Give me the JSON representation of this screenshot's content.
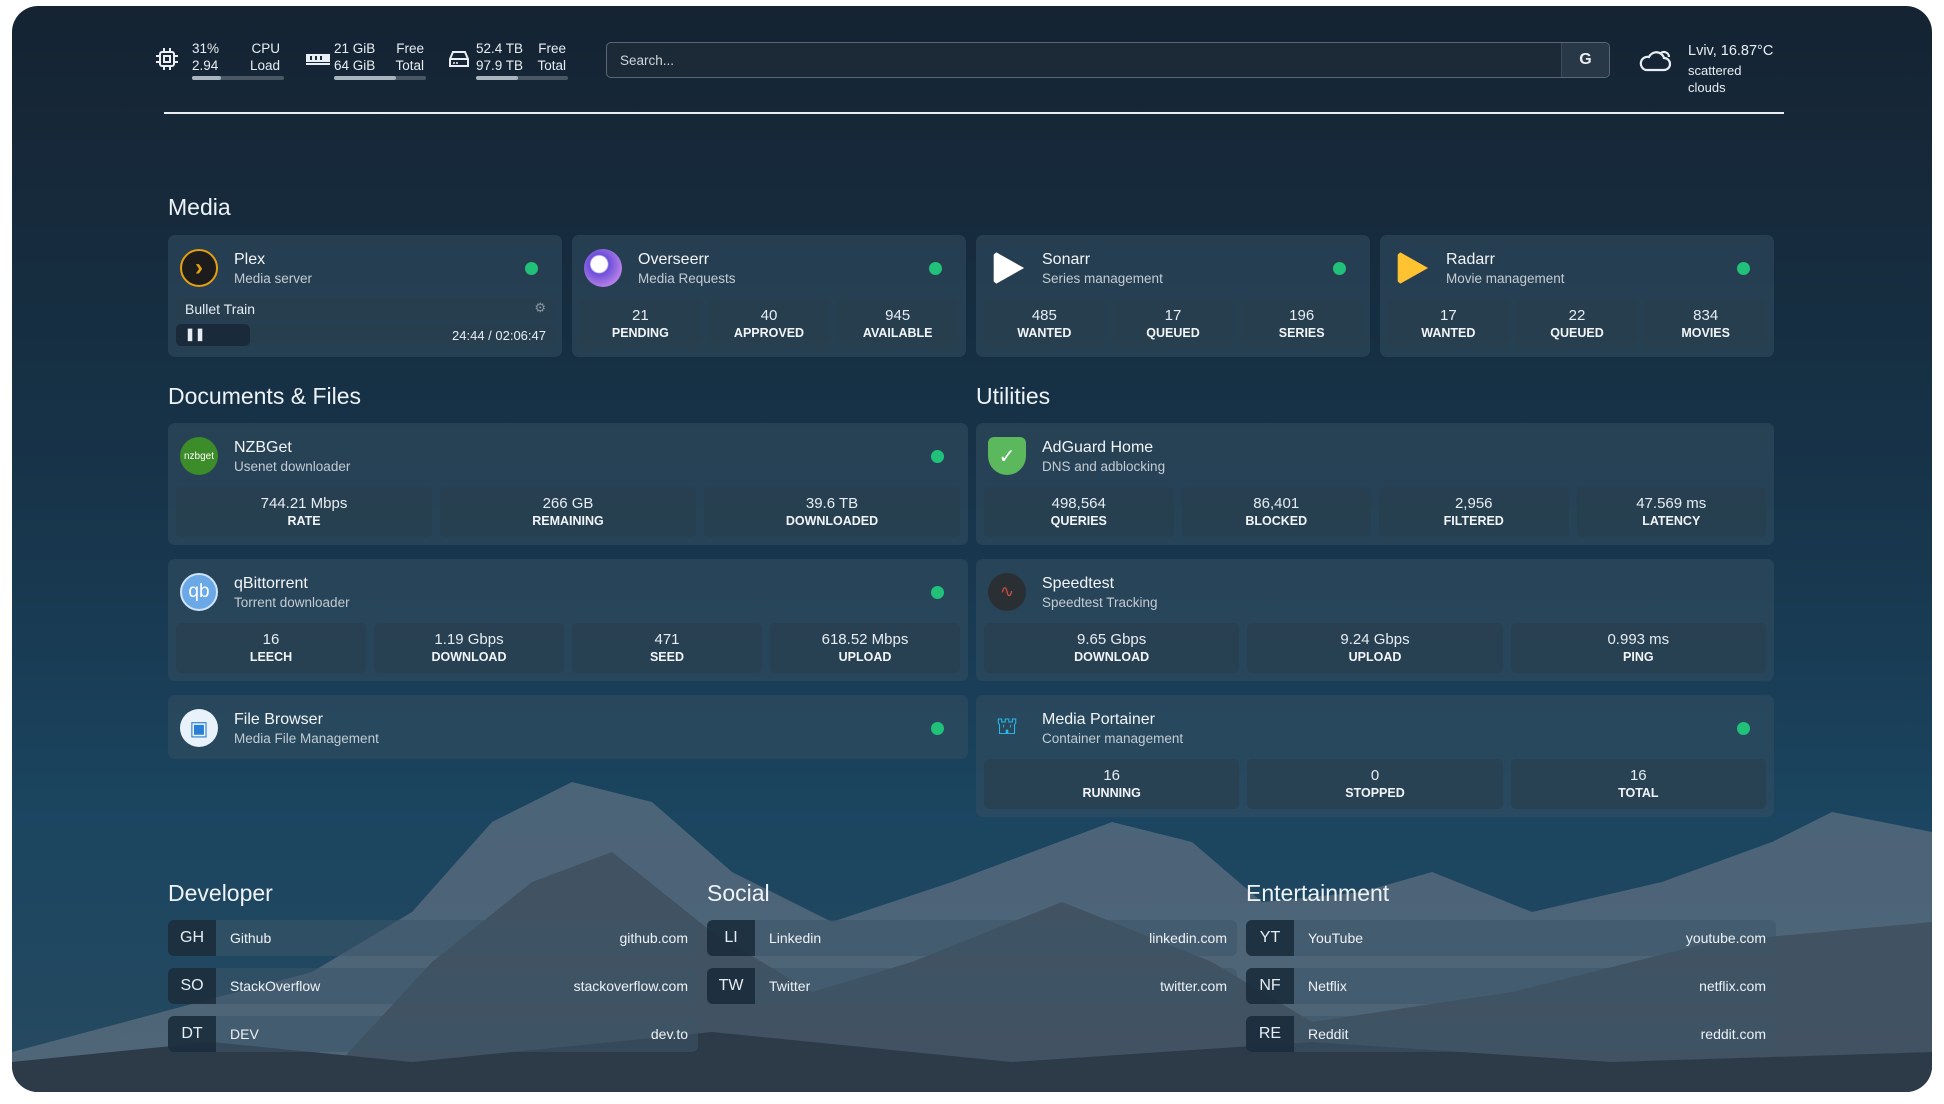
{
  "topbar": {
    "cpu": {
      "percent": "31%",
      "load": "2.94",
      "label1": "CPU",
      "label2": "Load",
      "fill": 0.31,
      "icon": "cpu-icon"
    },
    "memory": {
      "free": "21 GiB",
      "total": "64 GiB",
      "label1": "Free",
      "label2": "Total",
      "fill": 0.67,
      "icon": "memory-icon"
    },
    "disk": {
      "free": "52.4 TB",
      "total": "97.9 TB",
      "label1": "Free",
      "label2": "Total",
      "fill": 0.46,
      "icon": "hard-drive-icon"
    },
    "search": {
      "placeholder": "Search...",
      "button": "G"
    },
    "weather": {
      "line1": "Lviv, 16.87°C",
      "line2": "scattered clouds",
      "icon": "cloud-icon"
    }
  },
  "sections": {
    "media": "Media",
    "docs": "Documents & Files",
    "utilities": "Utilities",
    "developer": "Developer",
    "social": "Social",
    "entertainment": "Entertainment"
  },
  "plex": {
    "title": "Plex",
    "subtitle": "Media server",
    "now_playing": "Bullet Train",
    "time": "24:44 / 02:06:47",
    "progress": 0.195,
    "status_color": "#22c17a"
  },
  "cards": [
    {
      "id": "overseerr",
      "title": "Overseerr",
      "subtitle": "Media Requests",
      "status": true,
      "stats": [
        {
          "v": "21",
          "l": "PENDING"
        },
        {
          "v": "40",
          "l": "APPROVED"
        },
        {
          "v": "945",
          "l": "AVAILABLE"
        }
      ]
    },
    {
      "id": "sonarr",
      "title": "Sonarr",
      "subtitle": "Series management",
      "status": true,
      "stats": [
        {
          "v": "485",
          "l": "WANTED"
        },
        {
          "v": "17",
          "l": "QUEUED"
        },
        {
          "v": "196",
          "l": "SERIES"
        }
      ]
    },
    {
      "id": "radarr",
      "title": "Radarr",
      "subtitle": "Movie management",
      "status": true,
      "stats": [
        {
          "v": "17",
          "l": "WANTED"
        },
        {
          "v": "22",
          "l": "QUEUED"
        },
        {
          "v": "834",
          "l": "MOVIES"
        }
      ]
    },
    {
      "id": "nzbget",
      "title": "NZBGet",
      "subtitle": "Usenet downloader",
      "icon_text": "nzbget",
      "status": true,
      "stats": [
        {
          "v": "744.21 Mbps",
          "l": "RATE"
        },
        {
          "v": "266 GB",
          "l": "REMAINING"
        },
        {
          "v": "39.6 TB",
          "l": "DOWNLOADED"
        }
      ]
    },
    {
      "id": "qbittorrent",
      "title": "qBittorrent",
      "subtitle": "Torrent downloader",
      "icon_text": "qb",
      "status": true,
      "stats": [
        {
          "v": "16",
          "l": "LEECH"
        },
        {
          "v": "1.19 Gbps",
          "l": "DOWNLOAD"
        },
        {
          "v": "471",
          "l": "SEED"
        },
        {
          "v": "618.52 Mbps",
          "l": "UPLOAD"
        }
      ]
    },
    {
      "id": "filebrowser",
      "title": "File Browser",
      "subtitle": "Media File Management",
      "status": true,
      "stats": []
    },
    {
      "id": "adguard",
      "title": "AdGuard Home",
      "subtitle": "DNS and adblocking",
      "status": false,
      "stats": [
        {
          "v": "498,564",
          "l": "QUERIES"
        },
        {
          "v": "86,401",
          "l": "BLOCKED"
        },
        {
          "v": "2,956",
          "l": "FILTERED"
        },
        {
          "v": "47.569 ms",
          "l": "LATENCY"
        }
      ]
    },
    {
      "id": "speedtest",
      "title": "Speedtest",
      "subtitle": "Speedtest Tracking",
      "status": false,
      "stats": [
        {
          "v": "9.65 Gbps",
          "l": "DOWNLOAD"
        },
        {
          "v": "9.24 Gbps",
          "l": "UPLOAD"
        },
        {
          "v": "0.993 ms",
          "l": "PING"
        }
      ]
    },
    {
      "id": "portainer",
      "title": "Media Portainer",
      "subtitle": "Container management",
      "status": true,
      "stats": [
        {
          "v": "16",
          "l": "RUNNING"
        },
        {
          "v": "0",
          "l": "STOPPED"
        },
        {
          "v": "16",
          "l": "TOTAL"
        }
      ]
    }
  ],
  "links": {
    "developer": [
      {
        "abbr": "GH",
        "name": "Github",
        "url": "github.com"
      },
      {
        "abbr": "SO",
        "name": "StackOverflow",
        "url": "stackoverflow.com"
      },
      {
        "abbr": "DT",
        "name": "DEV",
        "url": "dev.to"
      }
    ],
    "social": [
      {
        "abbr": "LI",
        "name": "Linkedin",
        "url": "linkedin.com"
      },
      {
        "abbr": "TW",
        "name": "Twitter",
        "url": "twitter.com"
      }
    ],
    "entertainment": [
      {
        "abbr": "YT",
        "name": "YouTube",
        "url": "youtube.com"
      },
      {
        "abbr": "NF",
        "name": "Netflix",
        "url": "netflix.com"
      },
      {
        "abbr": "RE",
        "name": "Reddit",
        "url": "reddit.com"
      }
    ]
  }
}
